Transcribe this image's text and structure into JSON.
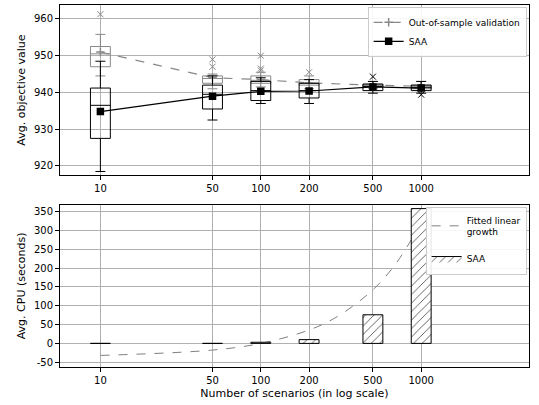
{
  "chart_data": [
    {
      "type": "box",
      "y_label": "Avg. objective value",
      "x": [
        10,
        50,
        100,
        200,
        500,
        1000
      ],
      "xlim": [
        5.6,
        4700
      ],
      "xticks": [
        10,
        50,
        100,
        200,
        500,
        1000
      ],
      "ylim": [
        917.5,
        963.8
      ],
      "yticks": [
        920,
        930,
        940,
        950,
        960
      ],
      "log": "x",
      "grid": true,
      "legend": "upper right",
      "series": [
        {
          "name": "Out-of-sample validation",
          "color": "#888888",
          "marker": "plus",
          "line_style": "dashed",
          "mean": [
            951.0,
            944.0,
            943.5,
            942.6,
            942.0,
            941.7
          ],
          "median": [
            950.5,
            943.8,
            943.3,
            942.5,
            941.9,
            941.6
          ],
          "q1": [
            947.0,
            942.5,
            942.5,
            942.0,
            941.5,
            941.0
          ],
          "q3": [
            952.5,
            944.5,
            944.5,
            943.5,
            942.2,
            942.0
          ],
          "lowerfence": [
            944.5,
            941.0,
            941.5,
            941.0,
            941.0,
            940.5
          ],
          "upperfence": [
            955.8,
            945.0,
            945.5,
            944.5,
            943.0,
            943.0
          ],
          "outliers": [
            [
              961.3
            ],
            [
              947.0,
              949.0
            ],
            [
              946.0,
              946.5,
              950.0
            ],
            [
              945.5
            ],
            [],
            []
          ]
        },
        {
          "name": "SAA",
          "color": "#000000",
          "marker": "square",
          "line_style": "solid",
          "mean": [
            934.8,
            939.0,
            940.3,
            940.4,
            941.5,
            941.2
          ],
          "median": [
            936.5,
            939.5,
            940.5,
            940.5,
            941.6,
            941.3
          ],
          "q1": [
            927.5,
            935.5,
            937.8,
            938.5,
            940.5,
            940.5
          ],
          "q3": [
            941.2,
            942.0,
            943.0,
            942.5,
            942.3,
            942.0
          ],
          "lowerfence": [
            918.5,
            932.5,
            937.0,
            937.0,
            939.8,
            939.8
          ],
          "upperfence": [
            948.5,
            944.5,
            944.0,
            943.5,
            943.0,
            943.0
          ],
          "outliers": [
            [],
            [],
            [],
            [],
            [
              944.3
            ],
            [
              939.4
            ]
          ]
        }
      ]
    },
    {
      "type": "bar",
      "x_label": "Number of scenarios (in log scale)",
      "y_label": "Avg. CPU (seconds)",
      "x": [
        10,
        50,
        100,
        200,
        500,
        1000
      ],
      "xlim": [
        5.6,
        4700
      ],
      "xticks": [
        10,
        50,
        100,
        200,
        500,
        1000
      ],
      "ylim": [
        -62.7,
        368
      ],
      "yticks": [
        -50,
        0,
        50,
        100,
        150,
        200,
        250,
        300,
        350
      ],
      "log": "x",
      "grid": true,
      "legend": "upper right",
      "series": [
        {
          "name": "Fitted linear\ngrowth",
          "type": "line",
          "line_style": "dashed",
          "color": "#808080",
          "x": [
            10,
            50,
            100,
            200,
            300,
            500,
            700,
            1000
          ],
          "values": [
            -32,
            -17.8,
            0,
            35.6,
            71.2,
            142.4,
            213.6,
            320.4
          ]
        },
        {
          "name": "SAA",
          "type": "bar",
          "marker": "hatch",
          "color": "#555555",
          "values": [
            0.5,
            1.5,
            3,
            10,
            76,
            358
          ]
        }
      ]
    }
  ]
}
